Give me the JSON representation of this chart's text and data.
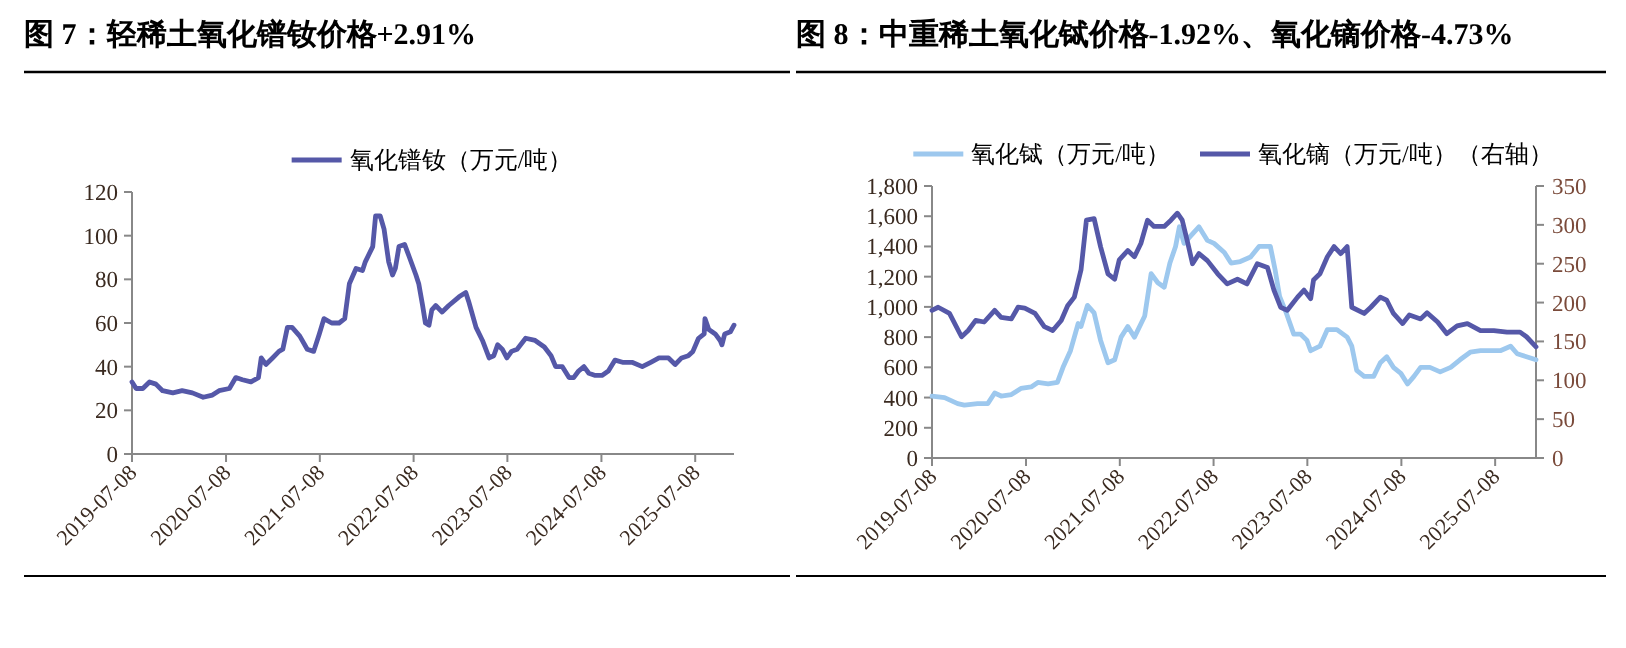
{
  "chart_data": [
    {
      "type": "line",
      "title": "图 7：轻稀土氧化镨钕价格+2.91%",
      "legend": "top",
      "xlim": [
        "2019-07-08",
        "2025-12-06"
      ],
      "xticks": [
        "2019-07-08",
        "2020-07-08",
        "2021-07-08",
        "2022-07-08",
        "2023-07-08",
        "2024-07-08",
        "2025-07-08"
      ],
      "ylim": [
        0,
        120
      ],
      "yticks": [
        0,
        20,
        40,
        60,
        80,
        100,
        120
      ],
      "series": [
        {
          "name": "氧化镨钕（万元/吨）",
          "color": "#5558a8",
          "x": [
            "2019-07-08",
            "2019-07-24",
            "2019-08-19",
            "2019-09-14",
            "2019-10-09",
            "2019-11-04",
            "2019-12-14",
            "2020-01-19",
            "2020-02-28",
            "2020-04-10",
            "2020-05-16",
            "2020-06-11",
            "2020-07-21",
            "2020-08-15",
            "2020-09-10",
            "2020-10-13",
            "2020-11-11",
            "2020-11-22",
            "2020-12-10",
            "2021-01-05",
            "2021-01-30",
            "2021-02-14",
            "2021-03-04",
            "2021-03-22",
            "2021-04-21",
            "2021-05-20",
            "2021-06-14",
            "2021-07-06",
            "2021-07-24",
            "2021-08-23",
            "2021-09-21",
            "2021-10-13",
            "2021-10-31",
            "2021-11-26",
            "2021-12-21",
            "2022-01-01",
            "2022-01-30",
            "2022-02-10",
            "2022-02-28",
            "2022-03-15",
            "2022-04-02",
            "2022-04-17",
            "2022-04-28",
            "2022-05-12",
            "2022-06-03",
            "2022-06-22",
            "2022-07-17",
            "2022-07-28",
            "2022-08-12",
            "2022-08-23",
            "2022-09-06",
            "2022-09-17",
            "2022-10-02",
            "2022-10-27",
            "2022-11-22",
            "2023-01-01",
            "2023-01-27",
            "2023-02-07",
            "2023-03-08",
            "2023-04-02",
            "2023-04-28",
            "2023-05-16",
            "2023-05-31",
            "2023-06-18",
            "2023-07-06",
            "2023-07-24",
            "2023-08-15",
            "2023-09-17",
            "2023-10-24",
            "2023-11-29",
            "2023-12-25",
            "2024-01-12",
            "2024-02-07",
            "2024-03-04",
            "2024-03-22",
            "2024-04-10",
            "2024-05-01",
            "2024-05-20",
            "2024-06-14",
            "2024-07-10",
            "2024-08-04",
            "2024-08-30",
            "2024-09-28",
            "2024-11-04",
            "2024-12-14",
            "2025-01-16",
            "2025-02-17",
            "2025-03-26",
            "2025-04-21",
            "2025-05-16",
            "2025-06-11",
            "2025-06-29",
            "2025-07-21",
            "2025-08-12",
            "2025-08-15",
            "2025-08-30",
            "2025-09-24",
            "2025-10-13",
            "2025-10-20",
            "2025-10-31",
            "2025-11-22",
            "2025-12-06"
          ],
          "values": [
            33,
            30,
            30,
            33,
            32,
            29,
            28,
            29,
            28,
            26,
            27,
            29,
            30,
            35,
            34,
            33,
            35,
            44,
            41,
            44,
            47,
            48,
            58,
            58,
            54,
            48,
            47,
            55,
            62,
            60,
            60,
            62,
            78,
            85,
            84,
            88,
            95,
            109,
            109,
            103,
            88,
            82,
            85,
            95,
            96,
            90,
            82,
            78,
            68,
            60,
            59,
            66,
            68,
            65,
            68,
            72,
            74,
            70,
            58,
            52,
            44,
            45,
            50,
            48,
            44,
            47,
            48,
            53,
            52,
            49,
            45,
            40,
            40,
            35,
            35,
            38,
            40,
            37,
            36,
            36,
            38,
            43,
            42,
            42,
            40,
            42,
            44,
            44,
            41,
            44,
            45,
            47,
            53,
            55,
            62,
            57,
            55,
            52,
            50,
            55,
            56,
            59
          ]
        }
      ]
    },
    {
      "type": "line",
      "title": "图 8：中重稀土氧化铽价格-1.92%、氧化镝价格-4.73%",
      "legend": "top",
      "xlim": [
        "2019-07-08",
        "2025-12-14"
      ],
      "xticks": [
        "2019-07-08",
        "2020-07-08",
        "2021-07-08",
        "2022-07-08",
        "2023-07-08",
        "2024-07-08",
        "2025-07-08"
      ],
      "ylim": [
        0,
        1800
      ],
      "yticks": [
        0,
        200,
        400,
        600,
        800,
        {
          "value": 1000,
          "label": "1,000"
        },
        {
          "value": 1200,
          "label": "1,200"
        },
        {
          "value": 1400,
          "label": "1,400"
        },
        {
          "value": 1600,
          "label": "1,600"
        },
        {
          "value": 1800,
          "label": "1,800"
        }
      ],
      "y2lim": [
        0,
        350
      ],
      "y2ticks": [
        0,
        50,
        100,
        150,
        200,
        250,
        300,
        350
      ],
      "series": [
        {
          "name": "氧化铽（万元/吨）",
          "color": "#9dc8ee",
          "x": [
            "2019-07-08",
            "2019-08-26",
            "2019-10-16",
            "2019-11-11",
            "2020-01-01",
            "2020-02-10",
            "2020-03-08",
            "2020-04-02",
            "2020-05-12",
            "2020-06-18",
            "2020-07-28",
            "2020-08-23",
            "2020-10-02",
            "2020-11-07",
            "2020-11-29",
            "2020-12-28",
            "2021-01-27",
            "2021-02-07",
            "2021-03-04",
            "2021-03-30",
            "2021-04-24",
            "2021-05-23",
            "2021-06-18",
            "2021-07-13",
            "2021-08-08",
            "2021-09-03",
            "2021-10-13",
            "2021-11-07",
            "2021-12-03",
            "2021-12-28",
            "2022-01-19",
            "2022-02-10",
            "2022-02-25",
            "2022-03-15",
            "2022-04-10",
            "2022-05-12",
            "2022-06-14",
            "2022-07-10",
            "2022-08-19",
            "2022-09-14",
            "2022-10-20",
            "2022-11-29",
            "2023-01-01",
            "2023-02-14",
            "2023-03-04",
            "2023-03-22",
            "2023-04-17",
            "2023-05-16",
            "2023-06-11",
            "2023-07-06",
            "2023-07-21",
            "2023-08-26",
            "2023-09-24",
            "2023-10-31",
            "2023-12-10",
            "2023-12-28",
            "2024-01-16",
            "2024-02-14",
            "2024-03-22",
            "2024-04-17",
            "2024-05-12",
            "2024-06-07",
            "2024-07-06",
            "2024-08-01",
            "2024-08-26",
            "2024-09-21",
            "2024-10-27",
            "2024-12-06",
            "2025-01-16",
            "2025-02-21",
            "2025-04-02",
            "2025-05-12",
            "2025-06-18",
            "2025-07-28",
            "2025-09-06",
            "2025-10-02",
            "2025-11-07",
            "2025-12-14"
          ],
          "values": [
            410,
            400,
            360,
            350,
            360,
            360,
            430,
            410,
            420,
            460,
            470,
            500,
            490,
            500,
            600,
            710,
            890,
            870,
            1010,
            960,
            780,
            630,
            650,
            800,
            870,
            800,
            940,
            1220,
            1160,
            1130,
            1290,
            1400,
            1530,
            1420,
            1470,
            1530,
            1440,
            1420,
            1360,
            1290,
            1300,
            1330,
            1400,
            1400,
            1250,
            1070,
            960,
            820,
            820,
            780,
            710,
            740,
            850,
            850,
            800,
            740,
            580,
            540,
            540,
            630,
            670,
            600,
            560,
            490,
            540,
            600,
            600,
            570,
            600,
            650,
            700,
            710,
            710,
            710,
            740,
            690,
            670,
            650
          ]
        },
        {
          "name": "氧化镝（万元/吨）（右轴）",
          "color": "#5558a8",
          "axis": "y2",
          "x": [
            "2019-07-08",
            "2019-08-01",
            "2019-09-14",
            "2019-10-31",
            "2019-11-26",
            "2019-12-25",
            "2020-01-27",
            "2020-03-08",
            "2020-04-02",
            "2020-05-12",
            "2020-06-07",
            "2020-07-03",
            "2020-08-12",
            "2020-09-17",
            "2020-10-20",
            "2020-11-22",
            "2020-12-17",
            "2021-01-12",
            "2021-02-07",
            "2021-02-28",
            "2021-03-30",
            "2021-04-24",
            "2021-05-23",
            "2021-06-18",
            "2021-07-06",
            "2021-08-08",
            "2021-09-03",
            "2021-09-28",
            "2021-10-24",
            "2021-11-18",
            "2021-12-28",
            "2022-01-23",
            "2022-02-17",
            "2022-03-08",
            "2022-03-30",
            "2022-04-17",
            "2022-05-12",
            "2022-06-14",
            "2022-07-24",
            "2022-08-30",
            "2022-10-09",
            "2022-11-15",
            "2022-12-25",
            "2023-02-03",
            "2023-02-28",
            "2023-03-26",
            "2023-04-21",
            "2023-05-31",
            "2023-06-25",
            "2023-07-21",
            "2023-08-01",
            "2023-08-26",
            "2023-09-24",
            "2023-10-20",
            "2023-11-15",
            "2023-12-10",
            "2023-12-28",
            "2024-02-14",
            "2024-03-11",
            "2024-04-17",
            "2024-05-12",
            "2024-06-07",
            "2024-07-13",
            "2024-08-08",
            "2024-09-21",
            "2024-10-16",
            "2024-11-26",
            "2025-01-01",
            "2025-02-10",
            "2025-03-22",
            "2025-05-12",
            "2025-07-03",
            "2025-08-23",
            "2025-10-13",
            "2025-11-07",
            "2025-12-14"
          ],
          "values": [
            190,
            194,
            186,
            156,
            164,
            177,
            175,
            190,
            181,
            179,
            194,
            193,
            186,
            169,
            164,
            177,
            196,
            207,
            242,
            306,
            308,
            272,
            237,
            230,
            255,
            267,
            259,
            276,
            306,
            298,
            298,
            306,
            315,
            306,
            276,
            250,
            263,
            254,
            237,
            224,
            230,
            224,
            250,
            245,
            216,
            194,
            190,
            207,
            216,
            205,
            229,
            237,
            259,
            272,
            263,
            272,
            194,
            186,
            194,
            207,
            203,
            186,
            173,
            184,
            179,
            187,
            175,
            160,
            170,
            173,
            164,
            164,
            162,
            162,
            156,
            143
          ]
        }
      ]
    }
  ]
}
